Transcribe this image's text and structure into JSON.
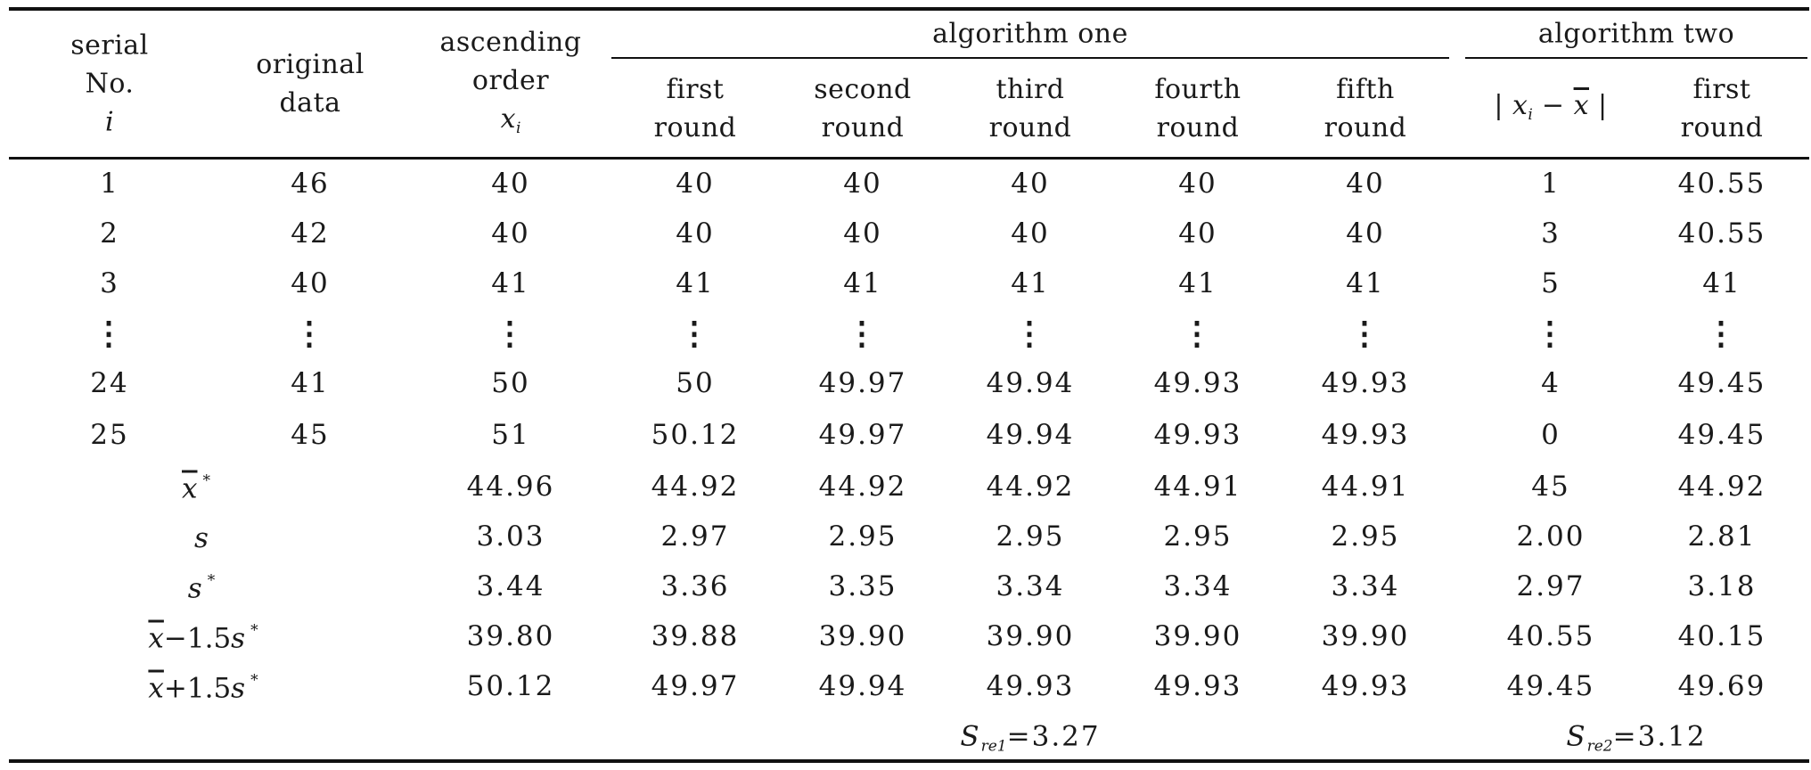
{
  "table": {
    "group_headers": {
      "algorithm_one": "algorithm one",
      "algorithm_two": "algorithm two"
    },
    "headers": {
      "serial": [
        "serial",
        "No.",
        "i"
      ],
      "original": [
        "original",
        "data"
      ],
      "ascending": [
        "ascending",
        "order",
        "x",
        "i"
      ],
      "first_round": [
        "first",
        "round"
      ],
      "second_round": [
        "second",
        "round"
      ],
      "third_round": [
        "third",
        "round"
      ],
      "fourth_round": [
        "fourth",
        "round"
      ],
      "fifth_round": [
        "fifth",
        "round"
      ],
      "deviation": [
        "|",
        "x",
        "i",
        "−",
        "x",
        "|"
      ],
      "alg2_first_round": [
        "first",
        "round"
      ]
    },
    "rows": [
      [
        "1",
        "46",
        "40",
        "40",
        "40",
        "40",
        "40",
        "40",
        "1",
        "40.55"
      ],
      [
        "2",
        "42",
        "40",
        "40",
        "40",
        "40",
        "40",
        "40",
        "3",
        "40.55"
      ],
      [
        "3",
        "40",
        "41",
        "41",
        "41",
        "41",
        "41",
        "41",
        "5",
        "41"
      ],
      [
        "⋮",
        "⋮",
        "⋮",
        "⋮",
        "⋮",
        "⋮",
        "⋮",
        "⋮",
        "⋮",
        "⋮"
      ],
      [
        "24",
        "41",
        "50",
        "50",
        "49.97",
        "49.94",
        "49.93",
        "49.93",
        "4",
        "49.45"
      ],
      [
        "25",
        "45",
        "51",
        "50.12",
        "49.97",
        "49.94",
        "49.93",
        "49.93",
        "0",
        "49.45"
      ]
    ],
    "stat_rows": [
      {
        "label": [
          "x",
          "*"
        ],
        "values": [
          "44.96",
          "44.92",
          "44.92",
          "44.92",
          "44.91",
          "44.91",
          "45",
          "44.92"
        ]
      },
      {
        "label": [
          "s"
        ],
        "values": [
          "3.03",
          "2.97",
          "2.95",
          "2.95",
          "2.95",
          "2.95",
          "2.00",
          "2.81"
        ]
      },
      {
        "label": [
          "s",
          "*"
        ],
        "values": [
          "3.44",
          "3.36",
          "3.35",
          "3.34",
          "3.34",
          "3.34",
          "2.97",
          "3.18"
        ]
      },
      {
        "label": [
          "x",
          "−1.5",
          "s",
          "*"
        ],
        "values": [
          "39.80",
          "39.88",
          "39.90",
          "39.90",
          "39.90",
          "39.90",
          "40.55",
          "40.15"
        ]
      },
      {
        "label": [
          "x",
          "+1.5",
          "s",
          "*"
        ],
        "values": [
          "50.12",
          "49.97",
          "49.94",
          "49.93",
          "49.93",
          "49.93",
          "49.45",
          "49.69"
        ]
      }
    ],
    "summary": {
      "alg1": {
        "symbol": "S",
        "subscript": "re1",
        "value": "=3.27"
      },
      "alg2": {
        "symbol": "S",
        "subscript": "re2",
        "value": "=3.12"
      }
    }
  }
}
